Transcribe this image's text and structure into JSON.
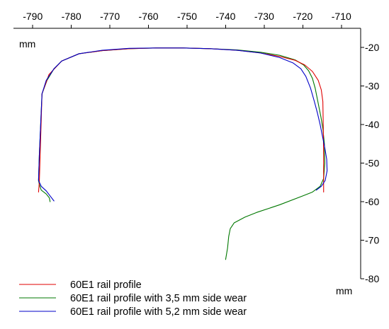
{
  "chart_data": {
    "type": "line",
    "title": "",
    "xlabel": "mm",
    "ylabel": "mm",
    "xlim": [
      -795,
      -705
    ],
    "ylim": [
      -80,
      -15
    ],
    "xticks": [
      -790,
      -780,
      -770,
      -760,
      -750,
      -740,
      -730,
      -720,
      -710
    ],
    "yticks": [
      -20,
      -30,
      -40,
      -50,
      -60,
      -70,
      -80
    ],
    "x_axis_position": "top",
    "y_axis_position": "right",
    "grid": false,
    "legend_position": "bottom-left",
    "series": [
      {
        "name": "60E1 rail profile",
        "color": "#e00000",
        "x": [
          -788.5,
          -788.3,
          -787.6,
          -785.8,
          -782.5,
          -778,
          -772,
          -765,
          -758,
          -751,
          -744,
          -737,
          -731,
          -726,
          -722,
          -719.5,
          -717.5,
          -716.0,
          -715.2,
          -714.8,
          -714.7,
          -714.6,
          -714.6,
          -714.6
        ],
        "y": [
          -57.5,
          -55,
          -32,
          -27,
          -23.5,
          -21.6,
          -20.8,
          -20.3,
          -20.1,
          -20.1,
          -20.3,
          -20.7,
          -21.4,
          -22.3,
          -23.3,
          -24.5,
          -26.2,
          -28.5,
          -31,
          -34,
          -40,
          -48,
          -54,
          -57.5
        ]
      },
      {
        "name": "60E1 rail profile with 3,5 mm side wear",
        "color": "#007800",
        "x": [
          -785.5,
          -785.7,
          -786.5,
          -787.8,
          -788.3,
          -788.5,
          -788.3,
          -787.6,
          -786.3,
          -784.5,
          -782.5,
          -778,
          -772,
          -765,
          -758,
          -751,
          -744,
          -737,
          -731,
          -726,
          -722,
          -719.8,
          -718.5,
          -717.5,
          -716.8,
          -716.3,
          -715.8,
          -715.3,
          -714.8,
          -714.4,
          -714.3,
          -714.6,
          -715.5,
          -717.5,
          -720,
          -726,
          -732,
          -735,
          -737.8,
          -738.8,
          -739.2,
          -739.5,
          -740
        ],
        "y": [
          -60,
          -59,
          -58,
          -57,
          -55.5,
          -54.5,
          -48,
          -32,
          -28.5,
          -25.5,
          -23.5,
          -21.6,
          -20.8,
          -20.3,
          -20.1,
          -20.1,
          -20.3,
          -20.6,
          -21.2,
          -22,
          -23.2,
          -24.5,
          -26,
          -28,
          -30.5,
          -33,
          -35.5,
          -38,
          -41,
          -45,
          -50,
          -54,
          -56,
          -57.5,
          -58.5,
          -60.8,
          -62.8,
          -64,
          -65.5,
          -67,
          -69,
          -72,
          -75
        ]
      },
      {
        "name": "60E1 rail profile with 5,2 mm side wear",
        "color": "#0000c8",
        "x": [
          -784.5,
          -785.5,
          -786.5,
          -787.8,
          -788.5,
          -788.3,
          -787.6,
          -786.5,
          -784.5,
          -782.5,
          -778,
          -772,
          -765,
          -758,
          -751,
          -744,
          -737,
          -731,
          -726,
          -722.5,
          -720.5,
          -719.2,
          -718.0,
          -717.0,
          -716.2,
          -715.5,
          -714.9,
          -714.3,
          -713.8,
          -713.7,
          -714.2,
          -715.2,
          -716.5
        ],
        "y": [
          -59.8,
          -58.5,
          -57.2,
          -56,
          -54.5,
          -48,
          -32,
          -28.5,
          -25.5,
          -23.5,
          -21.6,
          -20.7,
          -20.2,
          -20.1,
          -20.1,
          -20.3,
          -20.7,
          -21.4,
          -22.6,
          -24,
          -25.5,
          -27.5,
          -30.5,
          -34,
          -37,
          -40,
          -43,
          -46,
          -49,
          -52,
          -54.5,
          -56,
          -57
        ]
      }
    ]
  }
}
